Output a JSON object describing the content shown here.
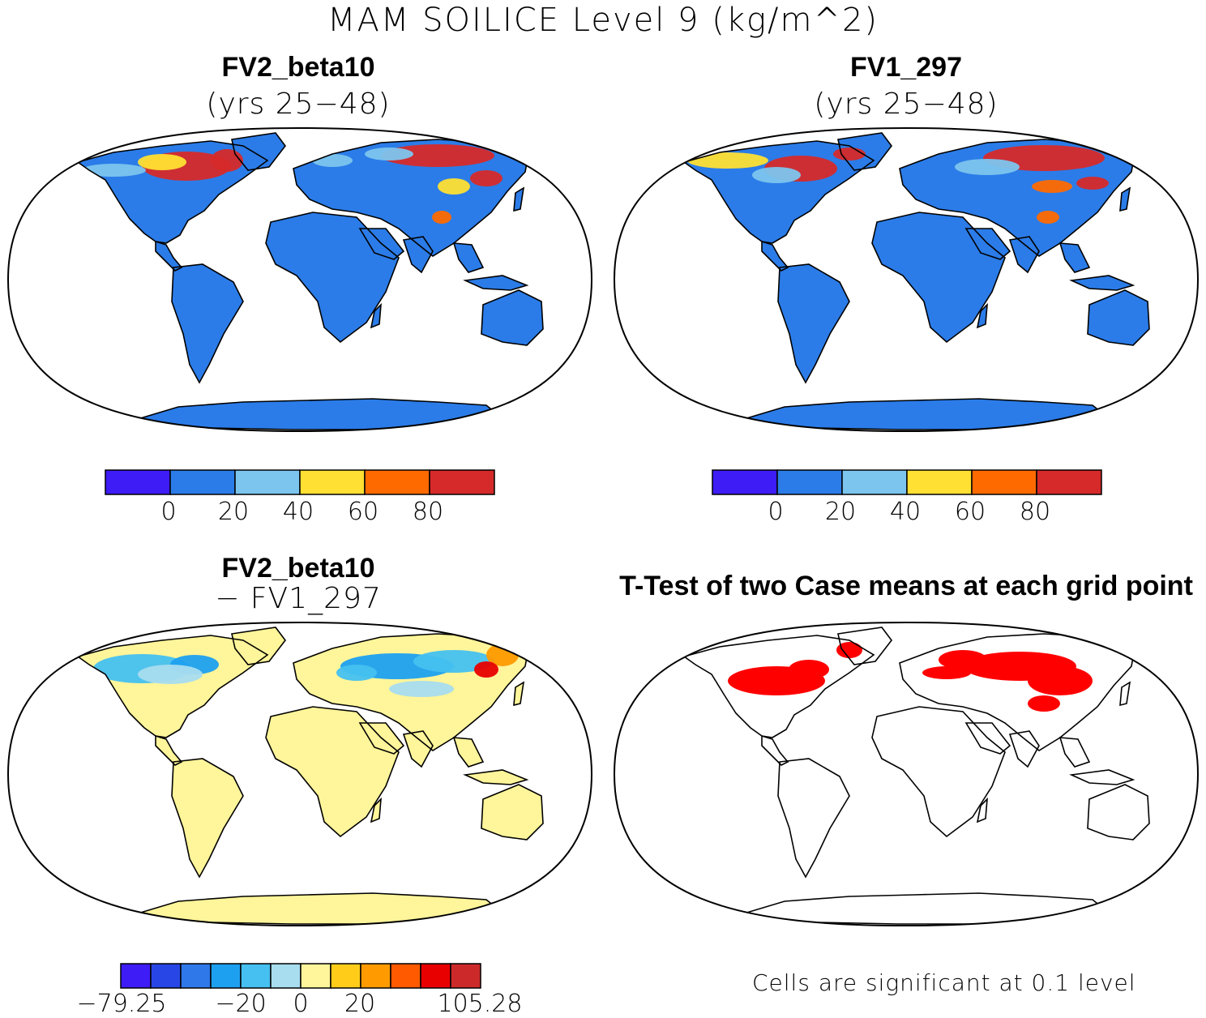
{
  "main_title": "MAM SOILICE Level 9 (kg/m^2)",
  "panels": [
    {
      "title": "FV2_beta10",
      "subtitle": "(yrs 25−48)"
    },
    {
      "title": "FV1_297",
      "subtitle": "(yrs 25−48)"
    },
    {
      "title": "FV2_beta10",
      "subtitle": "− FV1_297"
    },
    {
      "title": "T-Test of two Case means at each grid point",
      "subtitle": ""
    }
  ],
  "colorbar_top": {
    "colors": [
      "#3d1cf5",
      "#2b7ce8",
      "#7cc5ee",
      "#ffe033",
      "#ff6a00",
      "#d62a2a"
    ],
    "labels": [
      "0",
      "20",
      "40",
      "60",
      "80"
    ]
  },
  "colorbar_diff": {
    "colors": [
      "#3d1cf5",
      "#2846e6",
      "#2f78ea",
      "#1ea0f0",
      "#45c0f0",
      "#a8dcef",
      "#fff59a",
      "#ffcc1a",
      "#ff9a00",
      "#ff5a00",
      "#e80000",
      "#cc2a2a"
    ],
    "labels": [
      "−79.25",
      "−20",
      "0",
      "20",
      "105.28"
    ]
  },
  "significance": {
    "color": "#ff0000",
    "note": "Cells are significant at 0.1 level"
  },
  "map_colors": {
    "land_base": "#2b7ce8",
    "diff_base": "#fff59a",
    "coast": "#000000"
  }
}
